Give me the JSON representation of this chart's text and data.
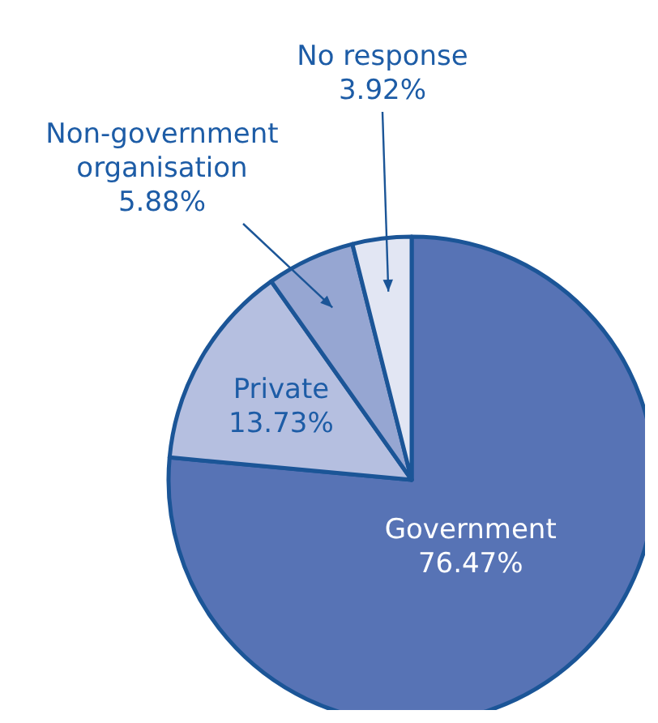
{
  "chart_data": {
    "type": "pie",
    "categories": [
      "Government",
      "Private",
      "Non-government organisation",
      "No response"
    ],
    "values": [
      76.47,
      13.73,
      5.88,
      3.92
    ],
    "value_labels": [
      "76.47%",
      "13.73%",
      "5.88%",
      "3.92%"
    ],
    "colors": [
      "#5773b5",
      "#b5bfe0",
      "#96a6d2",
      "#e2e6f3"
    ]
  }
}
